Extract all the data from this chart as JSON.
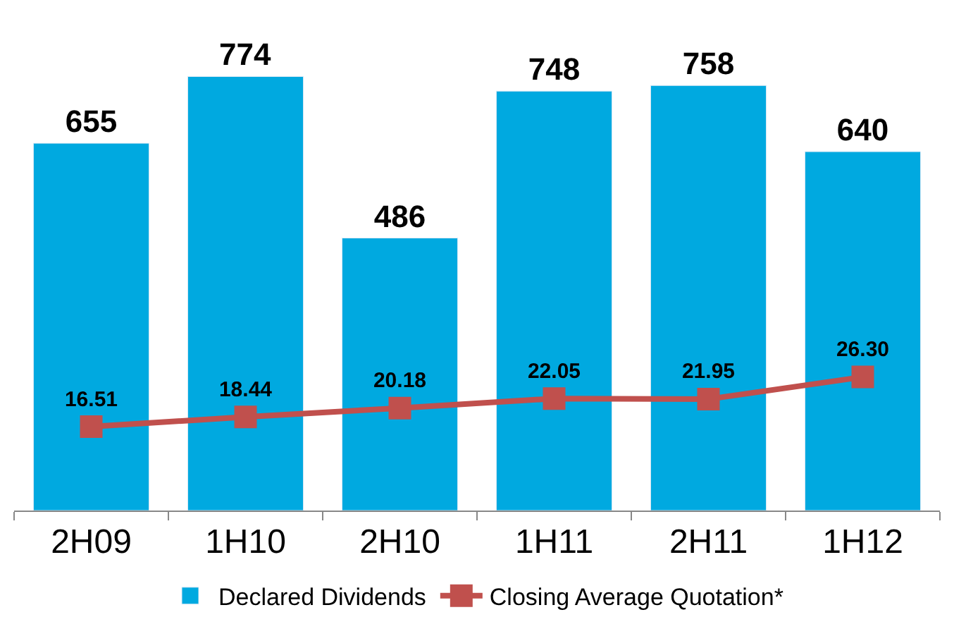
{
  "chart_data": {
    "type": "bar",
    "categories": [
      "2H09",
      "1H10",
      "2H10",
      "1H11",
      "2H11",
      "1H12"
    ],
    "series": [
      {
        "name": "Declared Dividends",
        "color": "#00a9e0",
        "values": [
          655,
          774,
          486,
          748,
          758,
          640
        ],
        "value_labels": [
          "655",
          "774",
          "486",
          "748",
          "758",
          "640"
        ]
      },
      {
        "name": "Closing Average Quotation*",
        "type": "line",
        "axis": "y2",
        "color": "#c0504d",
        "marker": "square",
        "values": [
          16.51,
          18.44,
          20.18,
          22.05,
          21.95,
          26.3
        ],
        "value_labels": [
          "16.51",
          "18.44",
          "20.18",
          "22.05",
          "21.95",
          "26.30"
        ]
      }
    ],
    "legend": "bottom",
    "tick_labels": "x"
  }
}
